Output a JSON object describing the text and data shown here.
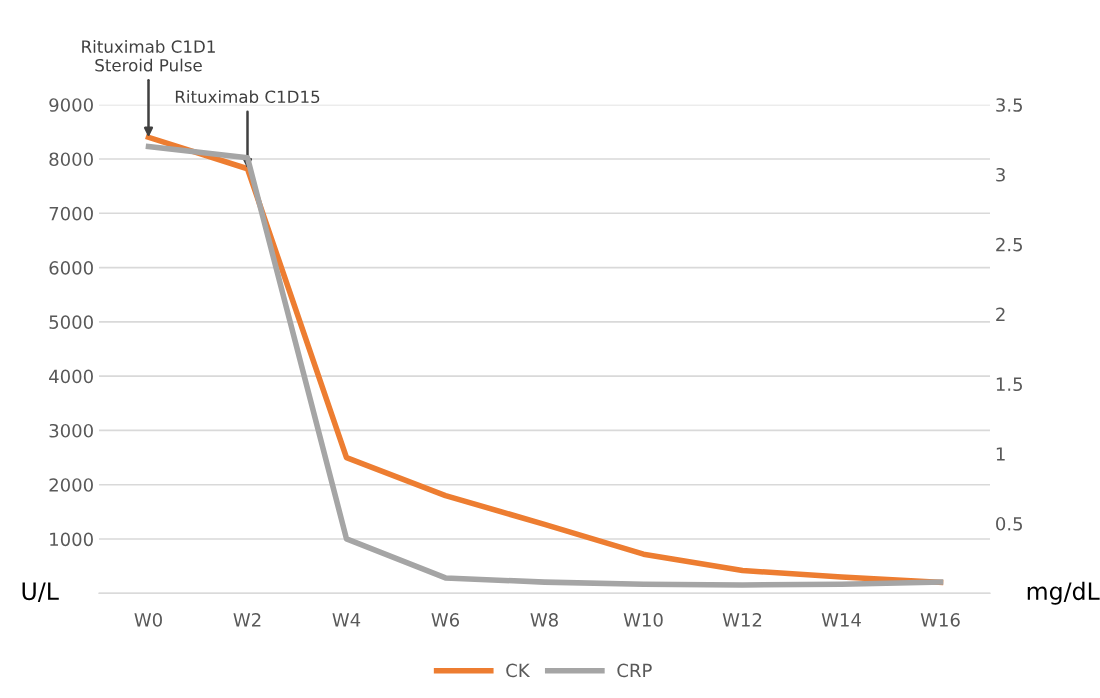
{
  "chart_data": {
    "type": "line",
    "categories": [
      "W0",
      "W2",
      "W4",
      "W6",
      "W8",
      "W10",
      "W12",
      "W14",
      "W16"
    ],
    "series": [
      {
        "name": "CK",
        "color": "#ed7d31",
        "values": [
          8400,
          7820,
          2500,
          1800,
          1270,
          720,
          420,
          300,
          200
        ]
      },
      {
        "name": "CRP",
        "color": "#a5a5a5",
        "axis": "y2",
        "values": [
          3.2,
          3.12,
          0.39,
          0.11,
          0.08,
          0.065,
          0.06,
          0.065,
          0.08
        ]
      }
    ],
    "ylabel": "U/L",
    "y2label": "mg/dL",
    "ylim": [
      0,
      9000
    ],
    "yticks": [
      {
        "value": 0,
        "label": null
      },
      1000,
      2000,
      3000,
      4000,
      5000,
      6000,
      7000,
      8000,
      9000
    ],
    "y2lim": [
      0,
      3.5
    ],
    "y2ticks": [
      {
        "value": 0,
        "label": null
      },
      0.5,
      1,
      1.5,
      2,
      2.5,
      3,
      3.5
    ],
    "annotations": [
      {
        "text": "Rituximab C1D1\nSteroid Pulse",
        "x": "W0",
        "y": 8400
      },
      {
        "text": "Rituximab C1D15",
        "x": "W2",
        "y": 7820
      }
    ],
    "grid": "y",
    "legend": "bottom",
    "marker": "none",
    "line_style": "solid"
  }
}
